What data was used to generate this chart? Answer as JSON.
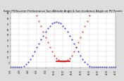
{
  "title": "Solar PV/Inverter Performance Sun Altitude Angle & Sun Incidence Angle on PV Panels",
  "title_fontsize": 2.8,
  "xlim": [
    0,
    24
  ],
  "ylim": [
    -10,
    90
  ],
  "yticks": [
    0,
    10,
    20,
    30,
    40,
    50,
    60,
    70,
    80,
    90
  ],
  "ytick_labels": [
    "0",
    "10",
    "20",
    "30",
    "40",
    "50",
    "60",
    "70",
    "80",
    "90"
  ],
  "xticks": [
    0,
    2,
    4,
    6,
    8,
    10,
    12,
    14,
    16,
    18,
    20,
    22,
    24
  ],
  "xtick_labels": [
    "0:00",
    "2:00",
    "4:00",
    "6:00",
    "8:00",
    "10:00",
    "12:00",
    "14:00",
    "16:00",
    "18:00",
    "20:00",
    "22:00",
    "24:00"
  ],
  "sun_altitude_x": [
    0.0,
    0.5,
    1.0,
    1.5,
    2.0,
    2.5,
    3.0,
    3.5,
    4.0,
    4.5,
    5.0,
    5.5,
    6.0,
    6.5,
    7.0,
    7.5,
    8.0,
    8.5,
    9.0,
    9.5,
    10.0,
    10.5,
    11.0,
    11.5,
    12.0,
    12.5,
    13.0,
    13.5,
    14.0,
    14.5,
    15.0,
    15.5,
    16.0,
    16.5,
    17.0,
    17.5,
    18.0,
    18.5,
    19.0,
    19.5,
    20.0,
    20.5,
    21.0,
    21.5,
    22.0,
    22.5,
    23.0,
    23.5,
    24.0
  ],
  "sun_altitude_y": [
    -8,
    -8,
    -8,
    -8,
    -8,
    -8,
    -7,
    -4,
    0,
    5,
    12,
    19,
    27,
    34,
    41,
    48,
    55,
    61,
    66,
    70,
    72,
    73,
    72,
    70,
    66,
    61,
    55,
    48,
    41,
    34,
    27,
    19,
    12,
    5,
    0,
    -4,
    -7,
    -8,
    -8,
    -8,
    -8,
    -8,
    -8,
    -8,
    -8,
    -8,
    -8,
    -8,
    -8
  ],
  "sun_incidence_x": [
    6.0,
    6.5,
    7.0,
    7.5,
    8.0,
    8.5,
    9.0,
    9.5,
    10.0,
    10.5,
    11.0,
    11.5,
    12.0,
    12.5,
    13.0,
    13.5,
    14.0,
    14.5,
    15.0,
    15.5,
    16.0,
    16.5,
    17.0,
    17.5,
    18.0
  ],
  "sun_incidence_y": [
    85,
    75,
    65,
    55,
    45,
    36,
    27,
    19,
    12,
    7,
    4,
    2,
    1,
    2,
    4,
    7,
    12,
    19,
    27,
    36,
    45,
    55,
    65,
    75,
    85
  ],
  "panel_line_x": [
    10.5,
    13.5
  ],
  "panel_line_y": [
    2,
    2
  ],
  "altitude_color": "#0000dd",
  "incidence_color": "#dd0000",
  "panel_color": "#dd0000",
  "grid_color": "#bbbbbb",
  "bg_color": "#ffffff",
  "fig_bg_color": "#dddddd",
  "marker_size": 0.8,
  "tick_fontsize": 1.8,
  "panel_linewidth": 1.2
}
